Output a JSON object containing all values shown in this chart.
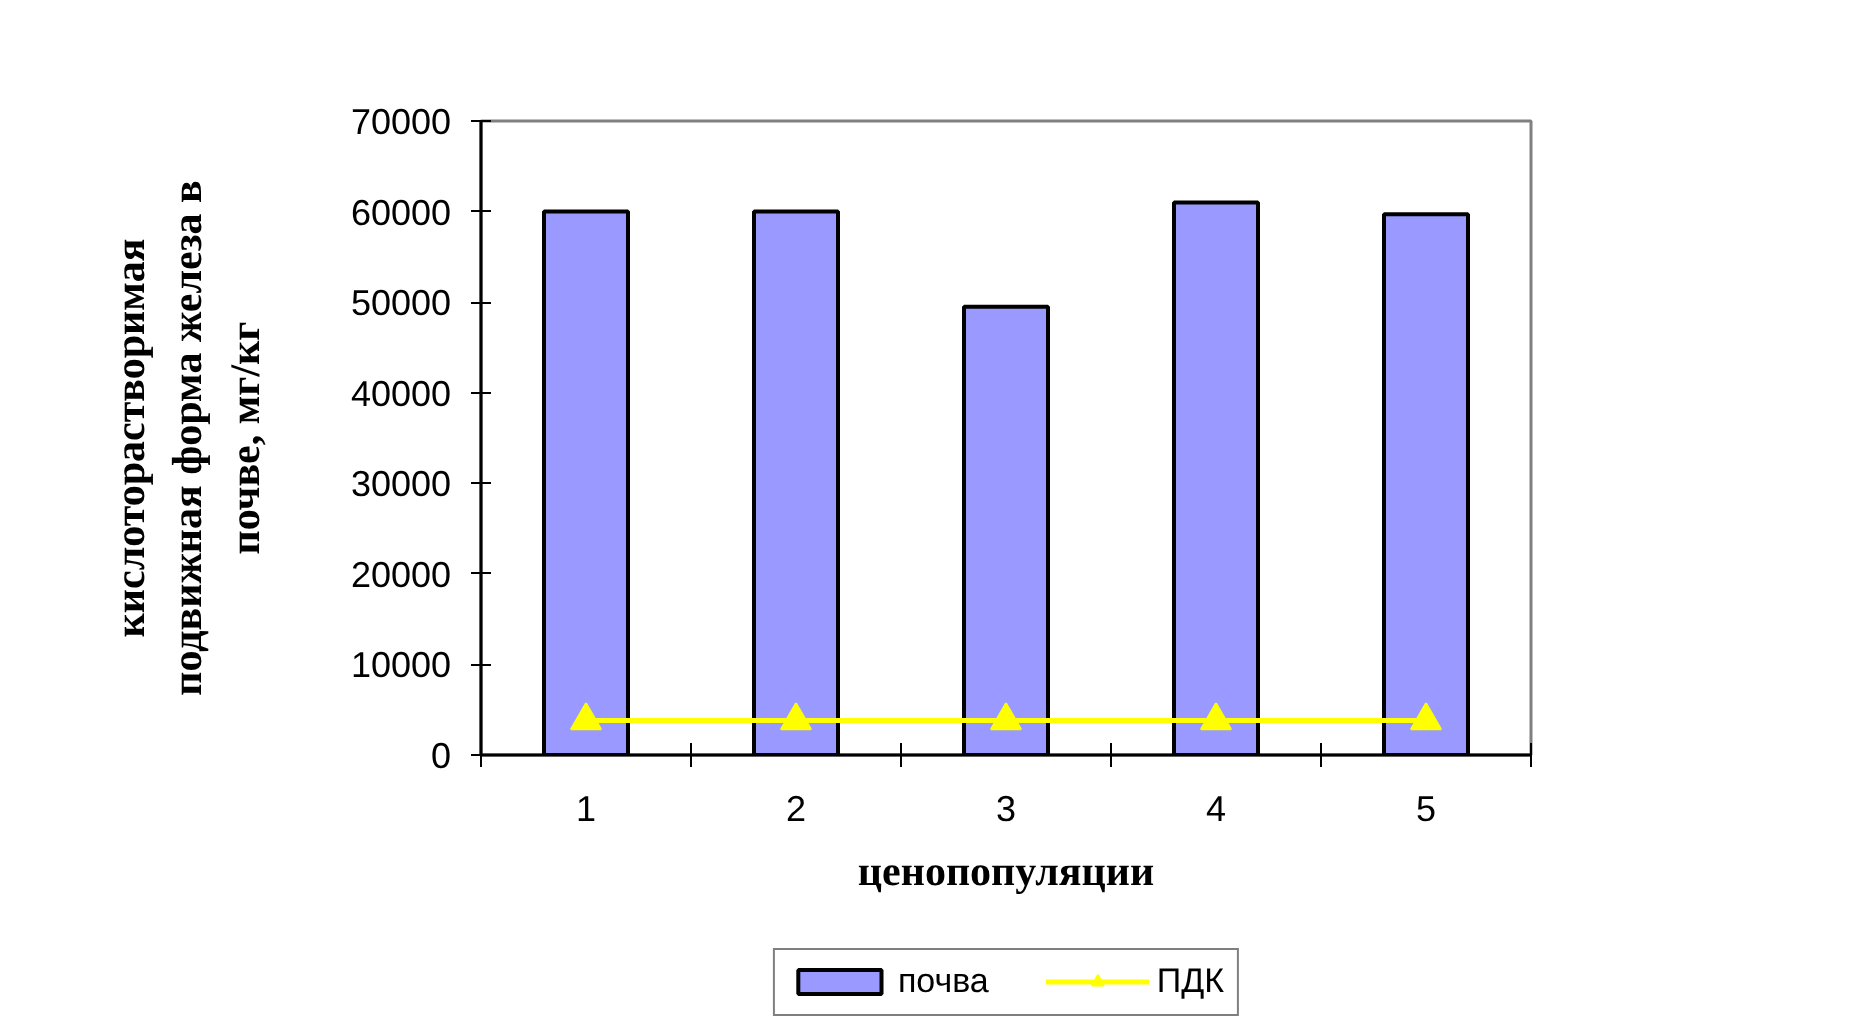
{
  "chart_data": {
    "type": "bar",
    "xlabel": "ценопопуляции",
    "ylabel": "кислоторастворимая подвижная форма железа в почве, мг/кг",
    "categories": [
      "1",
      "2",
      "3",
      "4",
      "5"
    ],
    "series": [
      {
        "name": "почва",
        "color": "#9999ff",
        "values": [
          60000,
          60000,
          49500,
          61000,
          59700
        ]
      },
      {
        "name": "ПДК",
        "type": "line",
        "color": "#ffff00",
        "marker": "triangle",
        "values": [
          3800,
          3800,
          3800,
          3800,
          3800
        ]
      }
    ],
    "ylim": [
      0,
      70000
    ],
    "yticks": [
      0,
      10000,
      20000,
      30000,
      40000,
      50000,
      60000,
      70000
    ],
    "grid": false,
    "legend": "bottom"
  }
}
